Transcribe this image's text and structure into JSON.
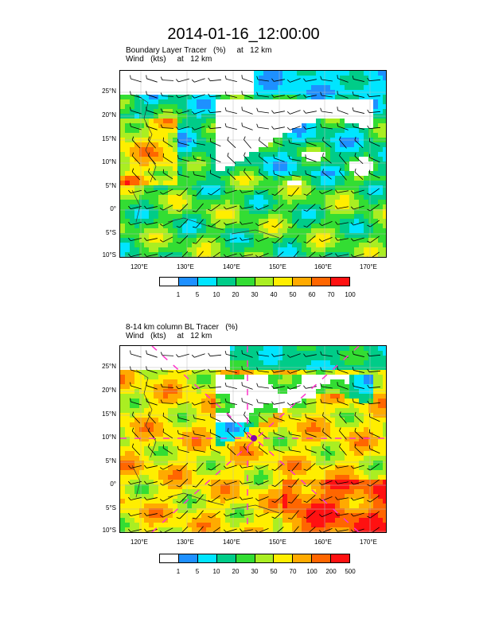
{
  "title": "2014-01-16_12:00:00",
  "panels": [
    {
      "line1": "Boundary Layer Tracer   (%)     at   12 km",
      "line2": "Wind   (kts)     at   12 km",
      "colorbar": [
        "1",
        "5",
        "10",
        "20",
        "30",
        "40",
        "50",
        "60",
        "70",
        "100"
      ]
    },
    {
      "line1": "8-14 km column BL Tracer   (%)",
      "line2": "Wind   (kts)     at   12 km",
      "colorbar": [
        "1",
        "5",
        "10",
        "20",
        "30",
        "50",
        "70",
        "100",
        "200",
        "500"
      ]
    }
  ],
  "lat_ticks": [
    "25°N",
    "20°N",
    "15°N",
    "10°N",
    "5°N",
    "0°",
    "5°S",
    "10°S"
  ],
  "lon_ticks": [
    "120°E",
    "130°E",
    "140°E",
    "150°E",
    "160°E",
    "170°E"
  ],
  "colors": [
    "#ffffff",
    "#1e90ff",
    "#00e5ff",
    "#00cc88",
    "#33dd33",
    "#aaee22",
    "#ffee00",
    "#ffaa00",
    "#ff6600",
    "#ff1111"
  ]
}
